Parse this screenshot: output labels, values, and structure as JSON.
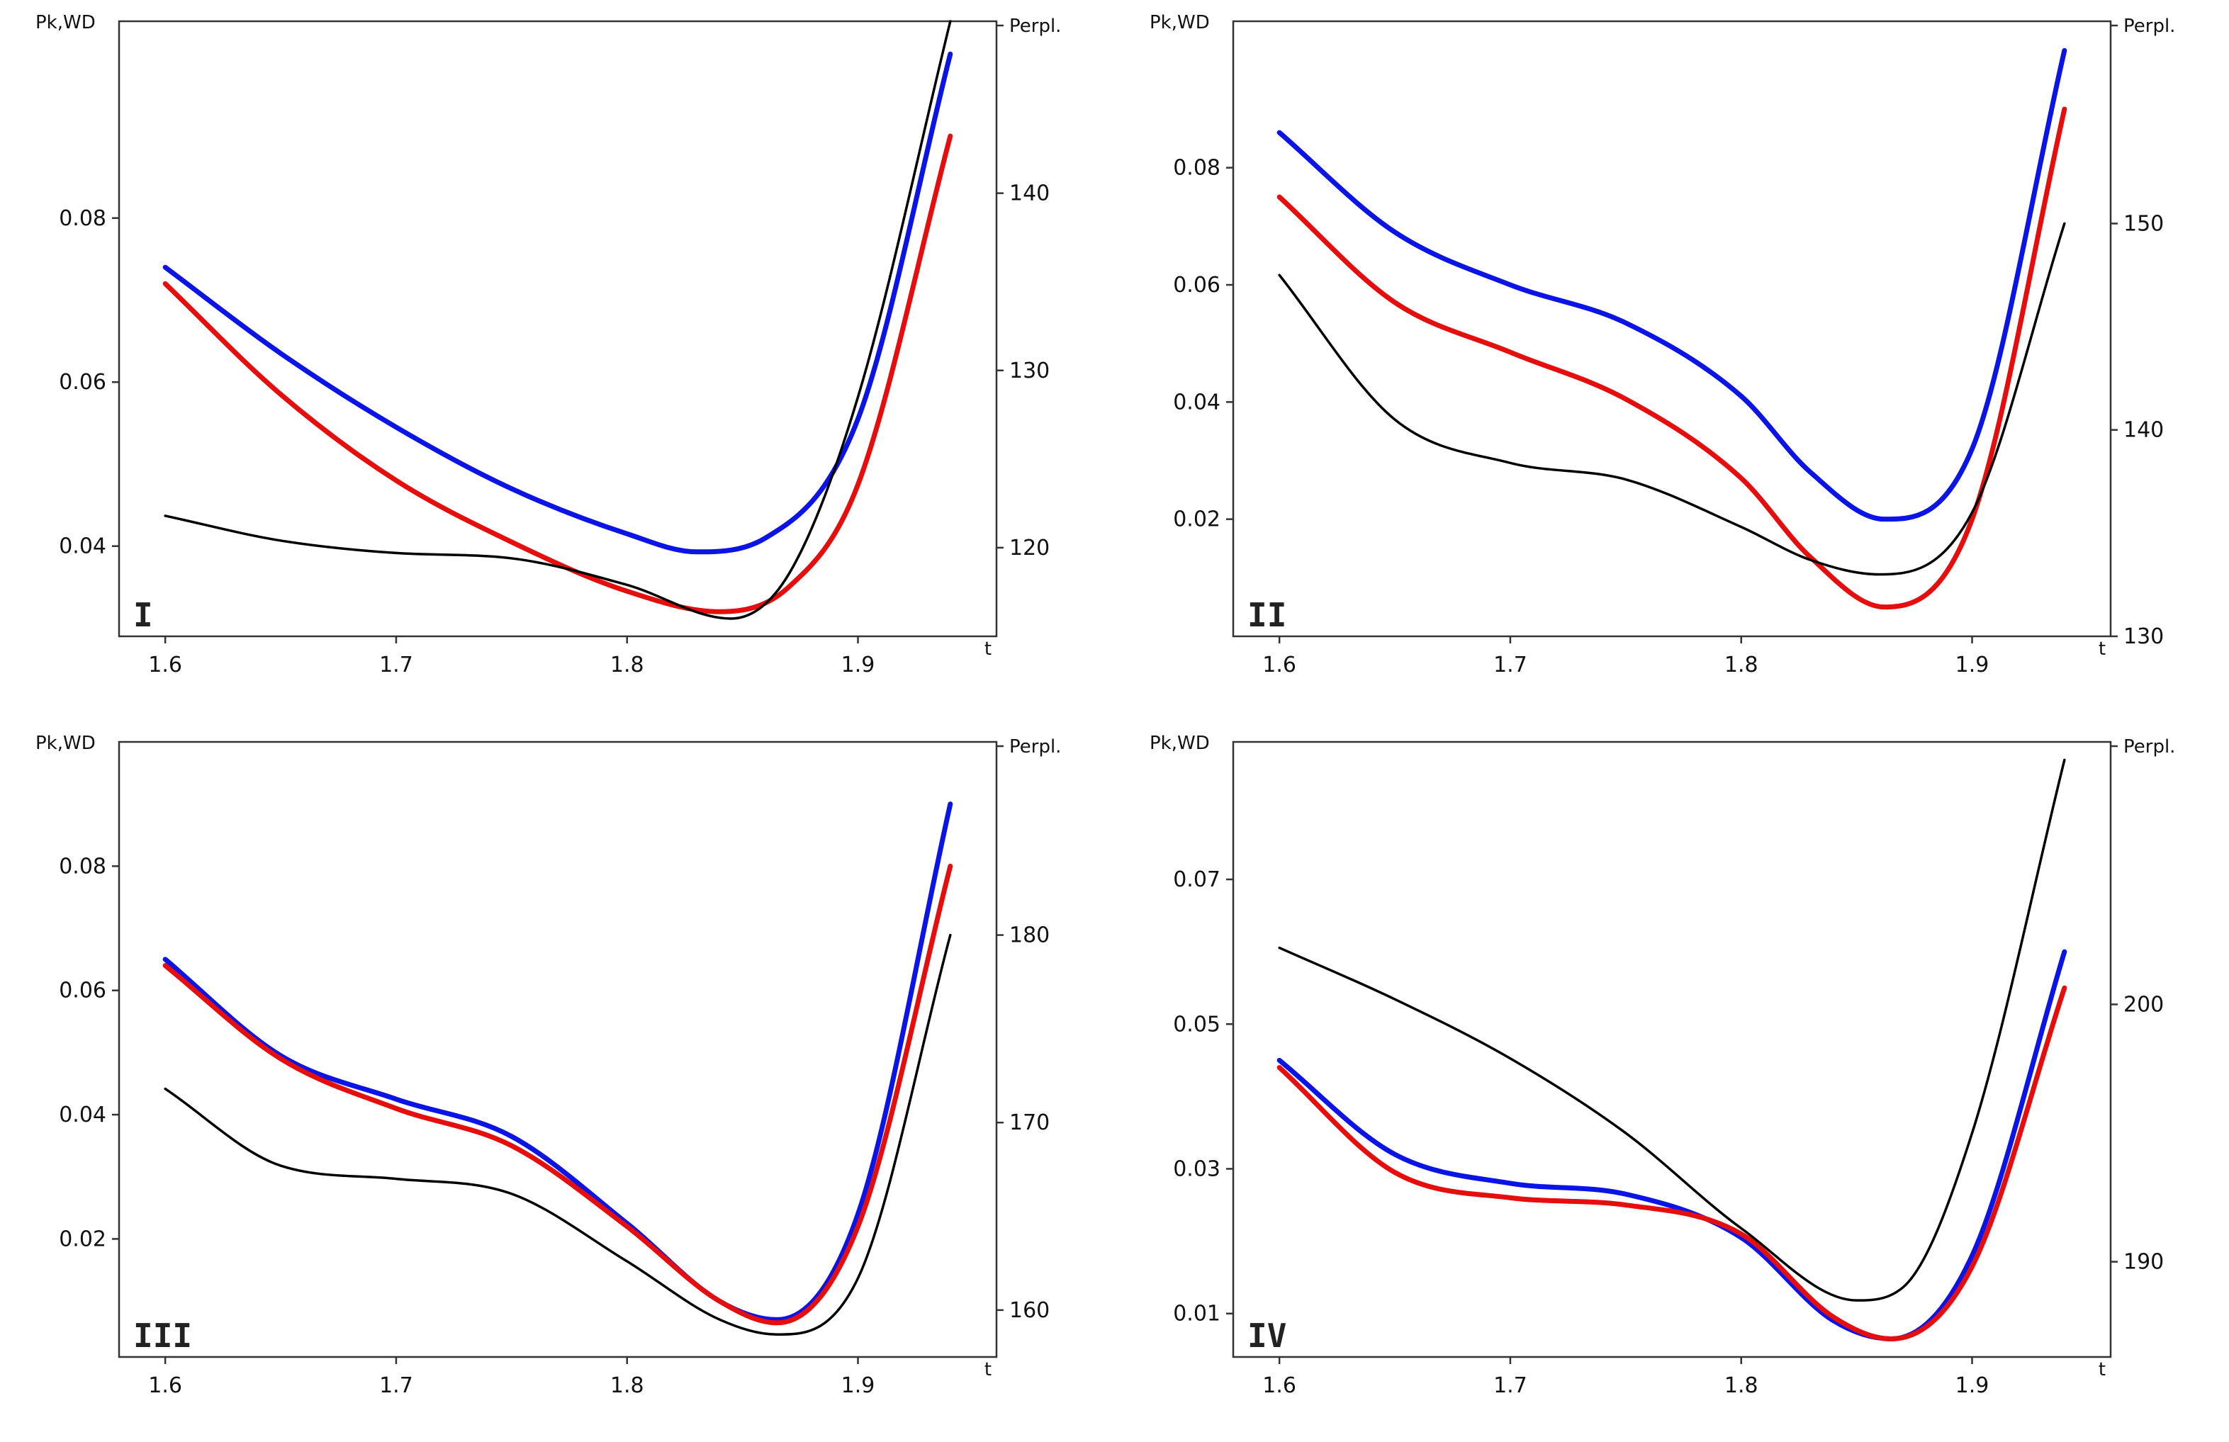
{
  "colors": {
    "pk": "#0a14e6",
    "wd": "#e60d0d",
    "perplexity": "#000000"
  },
  "chart_data": [
    {
      "type": "line",
      "panel_label": "I",
      "x_ticks": [
        "1.6",
        "1.7",
        "1.8",
        "1.9"
      ],
      "y_ticks_left": [
        "0.04",
        "0.06",
        "0.08"
      ],
      "y_ticks_right": [
        "120",
        "130",
        "140",
        "Perpl."
      ],
      "ylabel_left": "Pk,WD",
      "xlabel": "t",
      "xlim": [
        1.58,
        1.96
      ],
      "ylim_left": [
        0.029,
        0.104
      ],
      "ylim_right": [
        115.0,
        149.7
      ],
      "series": [
        {
          "name": "Pk",
          "axis": "left",
          "x": [
            1.6,
            1.65,
            1.7,
            1.75,
            1.8,
            1.83,
            1.86,
            1.9,
            1.94
          ],
          "y": [
            0.074,
            0.0635,
            0.0545,
            0.047,
            0.0415,
            0.0393,
            0.041,
            0.0555,
            0.1
          ]
        },
        {
          "name": "WD",
          "axis": "left",
          "x": [
            1.6,
            1.65,
            1.7,
            1.75,
            1.8,
            1.84,
            1.87,
            1.9,
            1.94
          ],
          "y": [
            0.072,
            0.0585,
            0.048,
            0.0405,
            0.0345,
            0.032,
            0.035,
            0.0475,
            0.09
          ]
        },
        {
          "name": "Perplexity",
          "axis": "right",
          "x": [
            1.6,
            1.65,
            1.7,
            1.75,
            1.8,
            1.845,
            1.87,
            1.9,
            1.94
          ],
          "y": [
            121.8,
            120.4,
            119.7,
            119.4,
            117.9,
            116.0,
            118.5,
            128.5,
            149.7
          ]
        }
      ]
    },
    {
      "type": "line",
      "panel_label": "II",
      "x_ticks": [
        "1.6",
        "1.7",
        "1.8",
        "1.9"
      ],
      "y_ticks_left": [
        "0.02",
        "0.04",
        "0.06",
        "0.08"
      ],
      "y_ticks_right": [
        "130",
        "140",
        "150",
        "Perpl."
      ],
      "ylabel_left": "Pk,WD",
      "xlabel": "t",
      "xlim": [
        1.58,
        1.96
      ],
      "ylim_left": [
        0.0,
        0.105
      ],
      "ylim_right": [
        130.0,
        159.8
      ],
      "series": [
        {
          "name": "Pk",
          "axis": "left",
          "x": [
            1.6,
            1.65,
            1.7,
            1.75,
            1.8,
            1.83,
            1.862,
            1.9,
            1.94
          ],
          "y": [
            0.086,
            0.069,
            0.06,
            0.0535,
            0.041,
            0.028,
            0.02,
            0.032,
            0.1
          ]
        },
        {
          "name": "WD",
          "axis": "left",
          "x": [
            1.6,
            1.65,
            1.7,
            1.75,
            1.8,
            1.83,
            1.862,
            1.9,
            1.94
          ],
          "y": [
            0.075,
            0.057,
            0.0485,
            0.0405,
            0.027,
            0.0135,
            0.005,
            0.02,
            0.09
          ]
        },
        {
          "name": "Perplexity",
          "axis": "right",
          "x": [
            1.6,
            1.65,
            1.7,
            1.75,
            1.8,
            1.83,
            1.86,
            1.9,
            1.94
          ],
          "y": [
            147.5,
            140.5,
            138.4,
            137.6,
            135.3,
            133.7,
            133.0,
            136.0,
            150.0
          ]
        }
      ]
    },
    {
      "type": "line",
      "panel_label": "III",
      "x_ticks": [
        "1.6",
        "1.7",
        "1.8",
        "1.9"
      ],
      "y_ticks_left": [
        "0.02",
        "0.04",
        "0.06",
        "0.08"
      ],
      "y_ticks_right": [
        "160",
        "170",
        "180",
        "Perpl."
      ],
      "ylabel_left": "Pk,WD",
      "xlabel": "t",
      "xlim": [
        1.58,
        1.96
      ],
      "ylim_left": [
        0.001,
        0.1
      ],
      "ylim_right": [
        157.5,
        190.3
      ],
      "series": [
        {
          "name": "Pk",
          "axis": "left",
          "x": [
            1.6,
            1.65,
            1.7,
            1.75,
            1.8,
            1.84,
            1.865,
            1.9,
            1.94
          ],
          "y": [
            0.065,
            0.0495,
            0.0425,
            0.0365,
            0.0225,
            0.01,
            0.007,
            0.024,
            0.09
          ]
        },
        {
          "name": "WD",
          "axis": "left",
          "x": [
            1.6,
            1.65,
            1.7,
            1.75,
            1.8,
            1.84,
            1.865,
            1.9,
            1.94
          ],
          "y": [
            0.064,
            0.049,
            0.041,
            0.035,
            0.022,
            0.01,
            0.0065,
            0.022,
            0.08
          ]
        },
        {
          "name": "Perplexity",
          "axis": "right",
          "x": [
            1.6,
            1.65,
            1.7,
            1.75,
            1.8,
            1.84,
            1.865,
            1.9,
            1.94
          ],
          "y": [
            171.8,
            167.7,
            167.0,
            166.2,
            162.6,
            159.5,
            158.7,
            161.7,
            180.0
          ]
        }
      ]
    },
    {
      "type": "line",
      "panel_label": "IV",
      "x_ticks": [
        "1.6",
        "1.7",
        "1.8",
        "1.9"
      ],
      "y_ticks_left": [
        "0.01",
        "0.03",
        "0.05",
        "0.07"
      ],
      "y_ticks_right": [
        "190",
        "200",
        "Perpl."
      ],
      "ylabel_left": "Pk,WD",
      "xlabel": "t",
      "xlim": [
        1.58,
        1.96
      ],
      "ylim_left": [
        0.004,
        0.089
      ],
      "ylim_right": [
        186.3,
        210.2
      ],
      "series": [
        {
          "name": "Pk",
          "axis": "left",
          "x": [
            1.6,
            1.65,
            1.7,
            1.75,
            1.8,
            1.84,
            1.865,
            1.9,
            1.94
          ],
          "y": [
            0.045,
            0.032,
            0.028,
            0.0265,
            0.0205,
            0.009,
            0.0065,
            0.018,
            0.06
          ]
        },
        {
          "name": "WD",
          "axis": "left",
          "x": [
            1.6,
            1.65,
            1.7,
            1.75,
            1.8,
            1.84,
            1.865,
            1.9,
            1.94
          ],
          "y": [
            0.044,
            0.0295,
            0.026,
            0.025,
            0.021,
            0.0095,
            0.0065,
            0.0165,
            0.055
          ]
        },
        {
          "name": "Perplexity",
          "axis": "right",
          "x": [
            1.6,
            1.65,
            1.7,
            1.75,
            1.8,
            1.85,
            1.87,
            1.9,
            1.94
          ],
          "y": [
            202.2,
            200.2,
            197.9,
            195.0,
            191.3,
            188.5,
            189.0,
            195.0,
            209.5
          ]
        }
      ]
    }
  ]
}
